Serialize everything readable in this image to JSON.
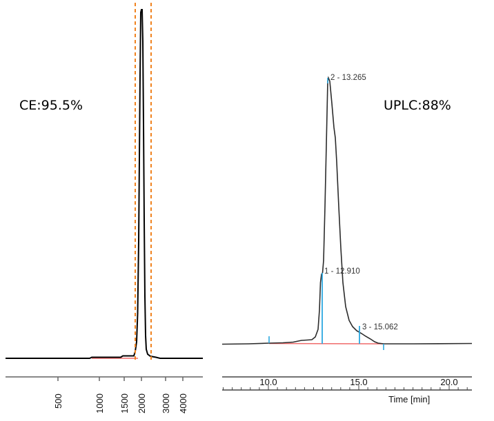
{
  "chart_data": [
    {
      "type": "line",
      "label": "CE:95.5%",
      "x_tick_labels": [
        "500",
        "1000",
        "1500",
        "2000",
        "3000",
        "4000"
      ],
      "main_peak_fraction": 0.955
    },
    {
      "type": "line",
      "label": "UPLC:88%",
      "xlabel": "Time [min]",
      "xlim": [
        7.4,
        21.3
      ],
      "x_ticks": [
        10.0,
        15.0,
        20.0
      ],
      "x_tick_labels": [
        "10.0",
        "15.0",
        "20.0"
      ],
      "main_peak_fraction": 0.88,
      "peaks": [
        {
          "label": "1 - 12.910",
          "x": 12.91
        },
        {
          "label": "2 - 13.265",
          "x": 13.265
        },
        {
          "label": "3 - 15.062",
          "x": 15.062
        }
      ],
      "integration_markers_x": [
        10.0,
        16.4
      ],
      "colors": {
        "trace": "#2b2b2b",
        "baseline": "#f06a6a",
        "marker": "#2aa8e0",
        "window": "#f0821e"
      }
    }
  ]
}
